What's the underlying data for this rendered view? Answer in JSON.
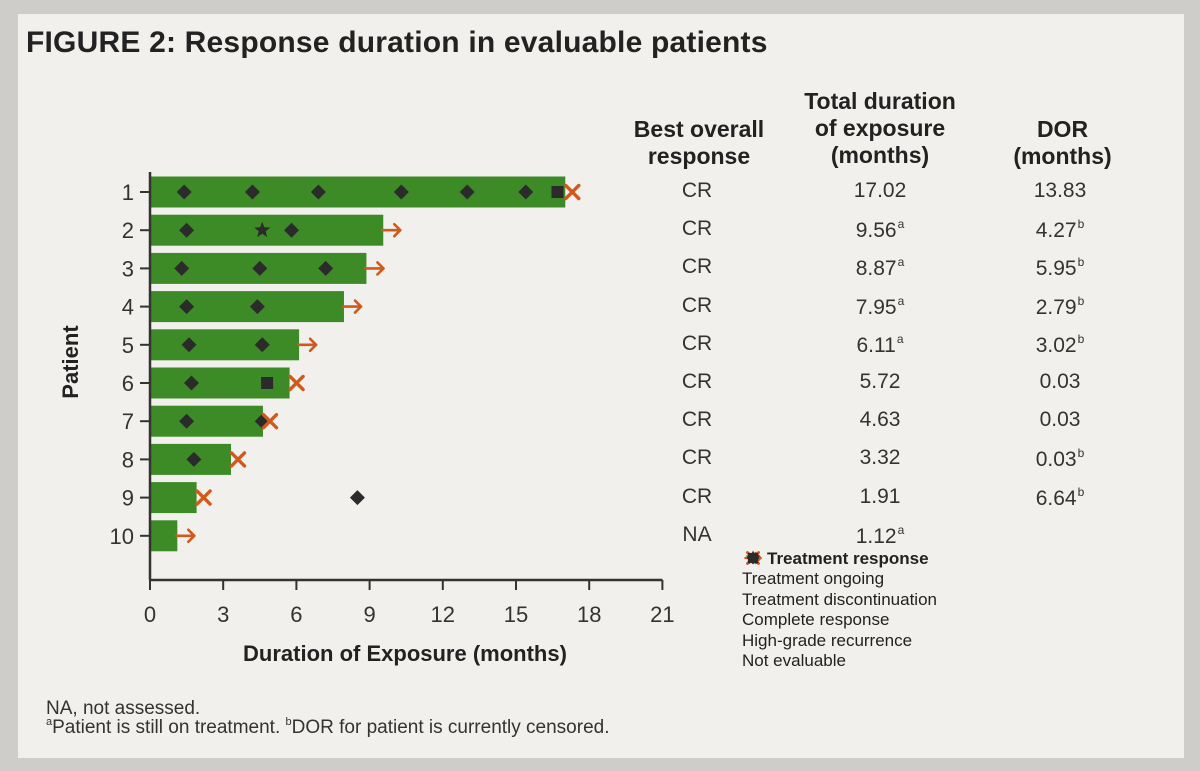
{
  "figure": {
    "title": "FIGURE 2: Response duration in evaluable patients"
  },
  "table": {
    "headers": {
      "response": [
        "Best overall",
        "response"
      ],
      "exposure": [
        "Total duration",
        "of exposure",
        "(months)"
      ],
      "dor": [
        "DOR",
        "(months)"
      ]
    },
    "rows": [
      {
        "patient": "1",
        "response": "CR",
        "exposure": "17.02",
        "exposure_note": "",
        "dor": "13.83",
        "dor_note": ""
      },
      {
        "patient": "2",
        "response": "CR",
        "exposure": "9.56",
        "exposure_note": "a",
        "dor": "4.27",
        "dor_note": "b"
      },
      {
        "patient": "3",
        "response": "CR",
        "exposure": "8.87",
        "exposure_note": "a",
        "dor": "5.95",
        "dor_note": "b"
      },
      {
        "patient": "4",
        "response": "CR",
        "exposure": "7.95",
        "exposure_note": "a",
        "dor": "2.79",
        "dor_note": "b"
      },
      {
        "patient": "5",
        "response": "CR",
        "exposure": "6.11",
        "exposure_note": "a",
        "dor": "3.02",
        "dor_note": "b"
      },
      {
        "patient": "6",
        "response": "CR",
        "exposure": "5.72",
        "exposure_note": "",
        "dor": "0.03",
        "dor_note": ""
      },
      {
        "patient": "7",
        "response": "CR",
        "exposure": "4.63",
        "exposure_note": "",
        "dor": "0.03",
        "dor_note": ""
      },
      {
        "patient": "8",
        "response": "CR",
        "exposure": "3.32",
        "exposure_note": "",
        "dor": "0.03",
        "dor_note": "b"
      },
      {
        "patient": "9",
        "response": "CR",
        "exposure": "1.91",
        "exposure_note": "",
        "dor": "6.64",
        "dor_note": "b"
      },
      {
        "patient": "10",
        "response": "NA",
        "exposure": "1.12",
        "exposure_note": "a",
        "dor": "",
        "dor_note": ""
      }
    ]
  },
  "legend": {
    "title": "Treatment response",
    "items": [
      {
        "key": "ongoing",
        "label": "Treatment ongoing"
      },
      {
        "key": "discontinued",
        "label": "Treatment discontinuation"
      },
      {
        "key": "complete",
        "label": "Complete response"
      },
      {
        "key": "recurrence",
        "label": "High-grade recurrence"
      },
      {
        "key": "not_evaluable",
        "label": "Not evaluable"
      }
    ]
  },
  "footnotes": {
    "na": "NA, not assessed.",
    "a_mark": "a",
    "a_text": "Patient is still on treatment. ",
    "b_mark": "b",
    "b_text": "DOR for patient is currently censored."
  },
  "colors": {
    "bar": "#3d8b27",
    "marker": "#2b2b2b",
    "arrow": "#d05a1e",
    "axis": "#333333"
  },
  "chart_data": {
    "type": "bar",
    "orientation": "horizontal",
    "categories": [
      "1",
      "2",
      "3",
      "4",
      "5",
      "6",
      "7",
      "8",
      "9",
      "10"
    ],
    "values": [
      17.02,
      9.56,
      8.87,
      7.95,
      6.11,
      5.72,
      4.63,
      3.32,
      1.91,
      1.12
    ],
    "xlabel": "Duration of Exposure (months)",
    "ylabel": "Patient",
    "xlim": [
      0,
      21
    ],
    "xticks": [
      0,
      3,
      6,
      9,
      12,
      15,
      18,
      21
    ],
    "grid": false,
    "end_markers": [
      "discontinued",
      "ongoing",
      "ongoing",
      "ongoing",
      "ongoing",
      "discontinued",
      "discontinued",
      "discontinued",
      "discontinued",
      "ongoing"
    ],
    "events": [
      {
        "patient": "1",
        "type": "complete",
        "x": 1.4
      },
      {
        "patient": "1",
        "type": "complete",
        "x": 4.2
      },
      {
        "patient": "1",
        "type": "complete",
        "x": 6.9
      },
      {
        "patient": "1",
        "type": "complete",
        "x": 10.3
      },
      {
        "patient": "1",
        "type": "complete",
        "x": 13.0
      },
      {
        "patient": "1",
        "type": "complete",
        "x": 15.4
      },
      {
        "patient": "1",
        "type": "recurrence",
        "x": 16.7
      },
      {
        "patient": "2",
        "type": "complete",
        "x": 1.5
      },
      {
        "patient": "2",
        "type": "not_evaluable",
        "x": 4.6
      },
      {
        "patient": "2",
        "type": "complete",
        "x": 5.8
      },
      {
        "patient": "3",
        "type": "complete",
        "x": 1.3
      },
      {
        "patient": "3",
        "type": "complete",
        "x": 4.5
      },
      {
        "patient": "3",
        "type": "complete",
        "x": 7.2
      },
      {
        "patient": "4",
        "type": "complete",
        "x": 1.5
      },
      {
        "patient": "4",
        "type": "complete",
        "x": 4.4
      },
      {
        "patient": "5",
        "type": "complete",
        "x": 1.6
      },
      {
        "patient": "5",
        "type": "complete",
        "x": 4.6
      },
      {
        "patient": "6",
        "type": "complete",
        "x": 1.7
      },
      {
        "patient": "6",
        "type": "recurrence",
        "x": 4.8
      },
      {
        "patient": "7",
        "type": "complete",
        "x": 1.5
      },
      {
        "patient": "7",
        "type": "complete",
        "x": 4.6
      },
      {
        "patient": "8",
        "type": "complete",
        "x": 1.8
      },
      {
        "patient": "9",
        "type": "complete",
        "x": 8.5
      }
    ]
  }
}
